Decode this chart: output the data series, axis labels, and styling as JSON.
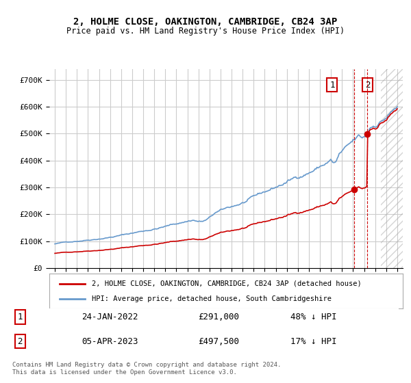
{
  "title": "2, HOLME CLOSE, OAKINGTON, CAMBRIDGE, CB24 3AP",
  "subtitle": "Price paid vs. HM Land Registry's House Price Index (HPI)",
  "legend_label_1": "2, HOLME CLOSE, OAKINGTON, CAMBRIDGE, CB24 3AP (detached house)",
  "legend_label_2": "HPI: Average price, detached house, South Cambridgeshire",
  "sale1_label": "1",
  "sale1_date": "24-JAN-2022",
  "sale1_price": "£291,000",
  "sale1_pct": "48% ↓ HPI",
  "sale2_label": "2",
  "sale2_date": "05-APR-2023",
  "sale2_price": "£497,500",
  "sale2_pct": "17% ↓ HPI",
  "footer": "Contains HM Land Registry data © Crown copyright and database right 2024.\nThis data is licensed under the Open Government Licence v3.0.",
  "hpi_color": "#6699cc",
  "sale_color": "#cc0000",
  "background_color": "#ffffff",
  "grid_color": "#cccccc",
  "sale1_x": 2022.07,
  "sale1_y": 291000,
  "sale2_x": 2023.27,
  "sale2_y": 497500,
  "ylim": [
    0,
    740000
  ],
  "xlim_start": 1994.5,
  "xlim_end": 2026.5
}
